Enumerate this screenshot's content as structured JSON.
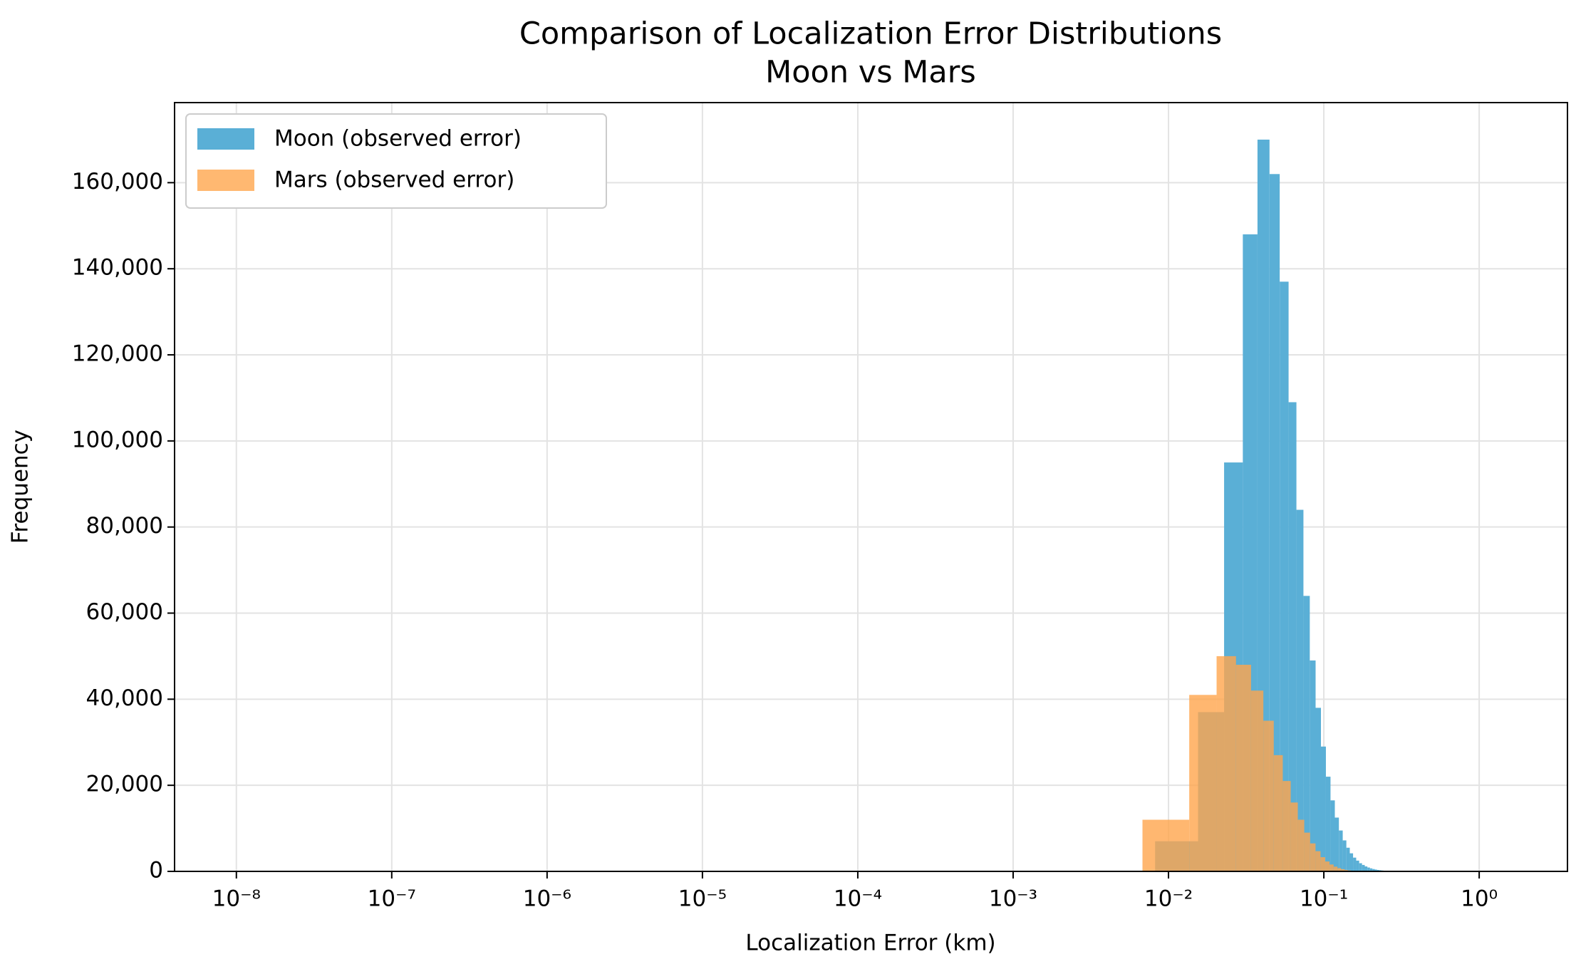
{
  "chart_data": {
    "type": "histogram",
    "title": "Comparison of Localization Error Distributions",
    "subtitle": "Moon vs Mars",
    "x_label": "Localization Error (km)",
    "y_label": "Frequency",
    "x_scale": "log",
    "grid": true,
    "legend_position": "upper left",
    "xlim": [
      4e-09,
      3.7
    ],
    "ylim": [
      0,
      178600
    ],
    "xticks": [
      {
        "value": 1e-08,
        "label": "10⁻⁸"
      },
      {
        "value": 1e-07,
        "label": "10⁻⁷"
      },
      {
        "value": 1e-06,
        "label": "10⁻⁶"
      },
      {
        "value": 1e-05,
        "label": "10⁻⁵"
      },
      {
        "value": 0.0001,
        "label": "10⁻⁴"
      },
      {
        "value": 0.001,
        "label": "10⁻³"
      },
      {
        "value": 0.01,
        "label": "10⁻²"
      },
      {
        "value": 0.1,
        "label": "10⁻¹"
      },
      {
        "value": 1,
        "label": "10⁰"
      }
    ],
    "yticks": [
      0,
      {
        "value": 20000,
        "label": "20,000"
      },
      {
        "value": 40000,
        "label": "40,000"
      },
      {
        "value": 60000,
        "label": "60,000"
      },
      {
        "value": 80000,
        "label": "80,000"
      },
      {
        "value": 100000,
        "label": "100,000"
      },
      {
        "value": 120000,
        "label": "120,000"
      },
      {
        "value": 140000,
        "label": "140,000"
      },
      {
        "value": 160000,
        "label": "160,000"
      }
    ],
    "series": [
      {
        "name": "Moon (observed error)",
        "color": "#5aafd6",
        "bins": [
          1e-08,
          0.0082,
          0.0155,
          0.0228,
          0.0301,
          0.0374,
          0.0447,
          0.052,
          0.0593,
          0.0666,
          0.0739,
          0.0812,
          0.0885,
          0.0958,
          0.1031,
          0.1104,
          0.1177,
          0.125,
          0.1323,
          0.1396,
          0.1469,
          0.1542,
          0.1615,
          0.1688,
          0.1761,
          0.1834,
          0.1907,
          0.198,
          0.2053,
          0.2126,
          0.2199,
          0.2272,
          0.2345,
          0.2418,
          0.2491,
          0.2564,
          0.2637,
          0.271,
          0.2783,
          0.2856,
          0.2929
        ],
        "values": [
          50,
          7000,
          37000,
          95000,
          148000,
          170000,
          162000,
          137000,
          109000,
          84000,
          64000,
          49000,
          38000,
          29000,
          22000,
          16500,
          12500,
          9500,
          7200,
          5500,
          4200,
          3200,
          2500,
          1900,
          1500,
          1150,
          900,
          700,
          550,
          430,
          340,
          270,
          210,
          165,
          130,
          100,
          80,
          63,
          50,
          40
        ]
      },
      {
        "name": "Mars  (observed error)",
        "color": "#ffa64d",
        "bins": [
          1e-08,
          0.0068,
          0.0136,
          0.0204,
          0.0272,
          0.034,
          0.0408,
          0.0476,
          0.0544,
          0.0612,
          0.068,
          0.0748,
          0.0816,
          0.0884,
          0.0952,
          0.102,
          0.1088,
          0.1156,
          0.1224,
          0.1292,
          0.136,
          0.1428,
          0.1496,
          0.1564,
          0.1632,
          0.17,
          0.1768
        ],
        "values": [
          50,
          12000,
          41000,
          50000,
          48000,
          42000,
          35000,
          27000,
          21000,
          16000,
          12000,
          9000,
          6500,
          4700,
          3300,
          2300,
          1600,
          1100,
          750,
          500,
          330,
          220,
          150,
          100,
          60,
          40
        ]
      }
    ]
  }
}
